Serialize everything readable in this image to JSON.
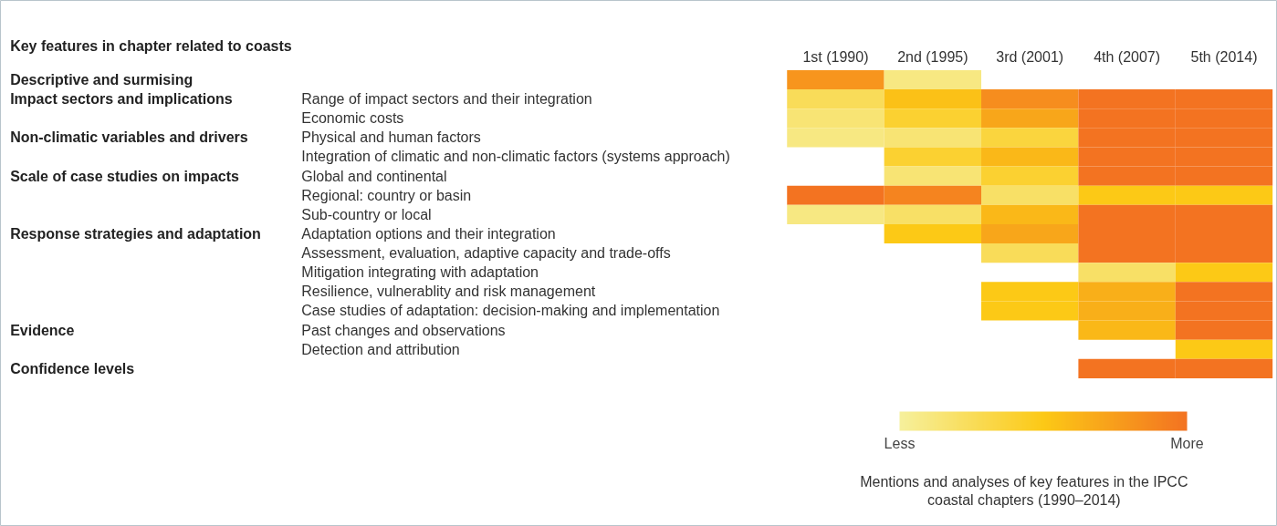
{
  "chart_data": {
    "type": "heatmap",
    "title": "Key features in chapter related to coasts",
    "categories": [
      "1st (1990)",
      "2nd (1995)",
      "3rd (2001)",
      "4th (2007)",
      "5th (2014)"
    ],
    "y2_categories": [
      "Descriptive and surmising",
      "Impact sectors and implications",
      null,
      "Non-climatic variables and drivers",
      null,
      "Scale of case studies on impacts",
      null,
      null,
      "Response strategies and adaptation",
      null,
      null,
      null,
      null,
      "Evidence",
      null,
      "Confidence levels"
    ],
    "y_categories": [
      null,
      "Range of impact sectors and their integration",
      "Economic costs",
      "Physical and human factors",
      "Integration of climatic and non-climatic factors (systems approach)",
      "Global and continental",
      "Regional: country or basin",
      "Sub-country or local",
      "Adaptation options and their integration",
      "Assessment, evaluation, adaptive capacity and trade-offs",
      "Mitigation integrating with adaptation",
      "Resilience, vulnerablity and risk management",
      "Case studies of adaptation: decision-making and implementation",
      "Past changes and observations",
      "Detection and attribution",
      null
    ],
    "cells": [
      [
        0.8,
        0.1,
        null,
        null,
        null
      ],
      [
        0.25,
        0.55,
        0.85,
        1,
        1
      ],
      [
        0.15,
        0.4,
        0.7,
        1,
        1
      ],
      [
        0.1,
        0.15,
        0.35,
        1,
        1
      ],
      [
        null,
        0.4,
        0.6,
        1,
        1
      ],
      [
        null,
        0.15,
        0.4,
        1,
        1
      ],
      [
        1,
        0.9,
        0.2,
        0.5,
        0.5
      ],
      [
        0.1,
        0.2,
        0.6,
        1,
        1
      ],
      [
        null,
        0.5,
        0.7,
        1,
        1
      ],
      [
        null,
        null,
        0.25,
        1,
        1
      ],
      [
        null,
        null,
        null,
        0.2,
        0.5
      ],
      [
        null,
        null,
        0.5,
        0.65,
        1
      ],
      [
        null,
        null,
        0.5,
        0.65,
        1
      ],
      [
        null,
        null,
        null,
        0.6,
        1
      ],
      [
        null,
        null,
        null,
        null,
        0.5
      ],
      [
        null,
        null,
        null,
        1,
        1
      ]
    ],
    "clim": [
      0,
      1
    ],
    "cticks": [
      {
        "value": 0,
        "label": "Less"
      },
      {
        "value": 1,
        "label": "More"
      }
    ],
    "clabel": "Mentions and analyses of key features in the IPCC coastal chapters (1990–2014)",
    "grid": false
  }
}
